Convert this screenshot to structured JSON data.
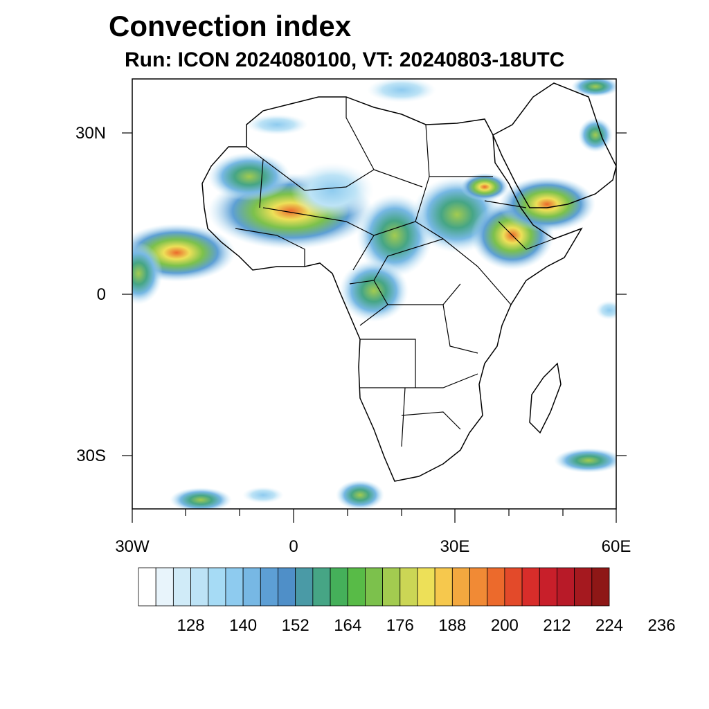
{
  "title": "Convection index",
  "subtitle": "Run: ICON 2024080100,  VT: 20240803-18UTC",
  "map": {
    "lon_range": [
      -30,
      60
    ],
    "lat_range": [
      -40,
      40
    ],
    "lat_ticks": [
      {
        "value": 30,
        "label": "30N"
      },
      {
        "value": 0,
        "label": "0"
      },
      {
        "value": -30,
        "label": "30S"
      }
    ],
    "lon_ticks": [
      {
        "value": -30,
        "label": "30W"
      },
      {
        "value": 0,
        "label": "0"
      },
      {
        "value": 30,
        "label": "30E"
      },
      {
        "value": 60,
        "label": "60E"
      }
    ]
  },
  "colorbar": {
    "colors": [
      "#ffffff",
      "#e8f4fb",
      "#d0ebf8",
      "#bde3f6",
      "#a6dbf5",
      "#8ecbef",
      "#77b8e4",
      "#5d9fd5",
      "#4f8fc8",
      "#4a9aa6",
      "#46a585",
      "#45b05a",
      "#58bb47",
      "#7cc14c",
      "#a3cb50",
      "#cbd655",
      "#ede058",
      "#f6c84d",
      "#f3a83f",
      "#f18a35",
      "#ec6a2c",
      "#e34a2a",
      "#d82d2a",
      "#c81f2a",
      "#b81a28",
      "#a5191f",
      "#8e1716"
    ],
    "labels": [
      "128",
      "140",
      "152",
      "164",
      "176",
      "188",
      "200",
      "212",
      "224",
      "236"
    ]
  },
  "colors": {
    "coast": "#000000",
    "frame": "#000000"
  }
}
